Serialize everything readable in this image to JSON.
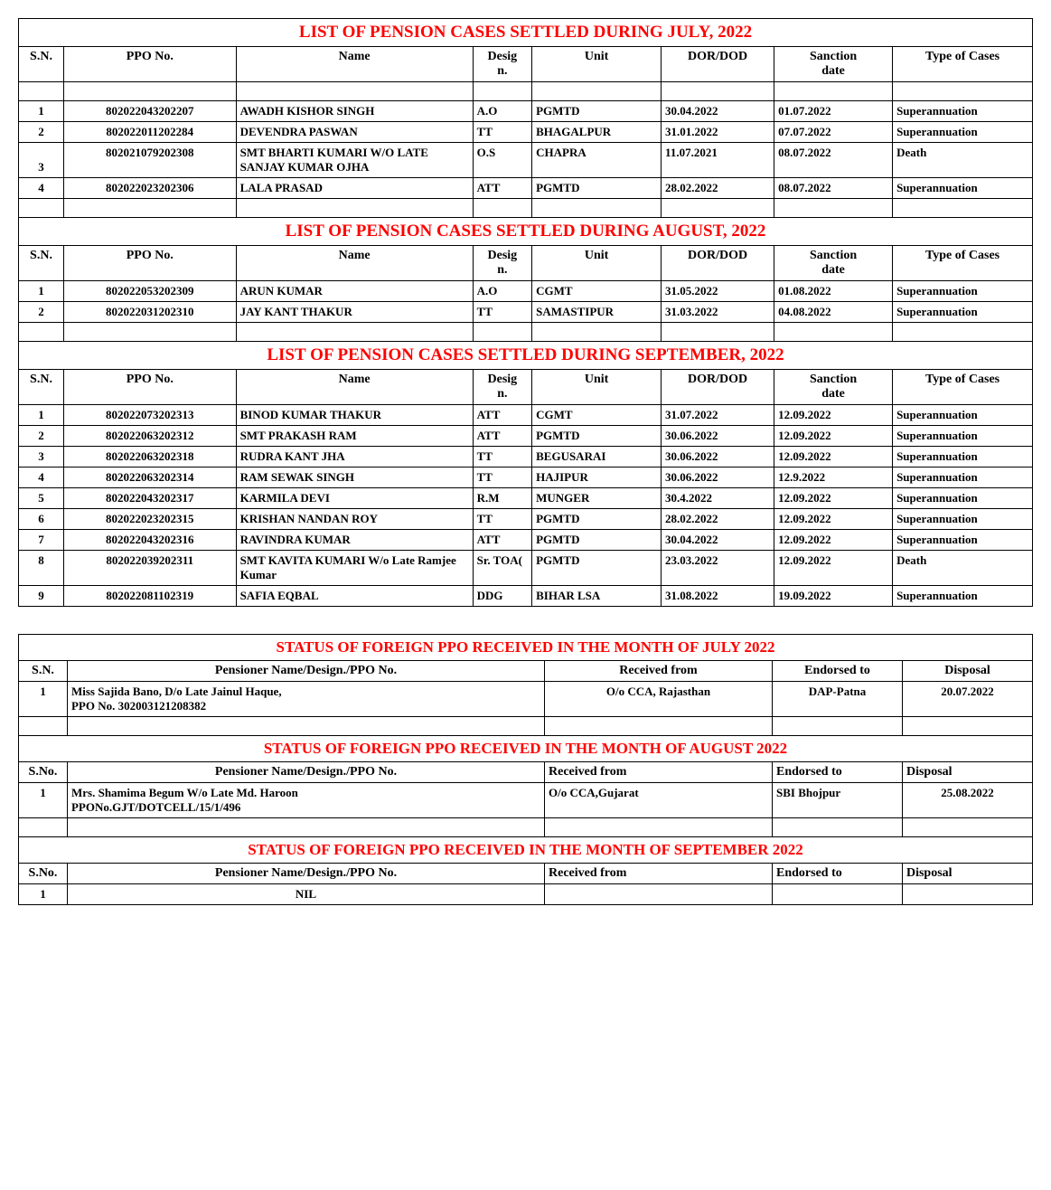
{
  "colors": {
    "title": "#ff0000",
    "text": "#000000",
    "border": "#000000",
    "background": "#ffffff"
  },
  "pension_columns": [
    "S.N.",
    "PPO No.",
    "Name",
    "Desig\nn.",
    "Unit",
    "DOR/DOD",
    "Sanction\ndate",
    "Type of Cases"
  ],
  "sections": [
    {
      "title": "LIST OF PENSION CASES SETTLED DURING JULY, 2022",
      "rows": [
        {
          "sn": "1",
          "ppo": "802022043202207",
          "name": "AWADH KISHOR SINGH",
          "desig": "A.O",
          "unit": "PGMTD",
          "dor": "30.04.2022",
          "san": "01.07.2022",
          "type": "Superannuation"
        },
        {
          "sn": "2",
          "ppo": "802022011202284",
          "name": "DEVENDRA PASWAN",
          "desig": "TT",
          "unit": "BHAGALPUR",
          "dor": "31.01.2022",
          "san": "07.07.2022",
          "type": "Superannuation"
        },
        {
          "sn": "3",
          "ppo": "802021079202308",
          "name": "SMT BHARTI KUMARI W/O LATE SANJAY KUMAR OJHA",
          "desig": "O.S",
          "unit": "CHAPRA",
          "dor": "11.07.2021",
          "san": "08.07.2022",
          "type": "Death"
        },
        {
          "sn": "4",
          "ppo": "802022023202306",
          "name": "LALA PRASAD",
          "desig": "ATT",
          "unit": "PGMTD",
          "dor": "28.02.2022",
          "san": "08.07.2022",
          "type": "Superannuation"
        }
      ]
    },
    {
      "title": "LIST OF PENSION CASES SETTLED DURING AUGUST, 2022",
      "rows": [
        {
          "sn": "1",
          "ppo": "802022053202309",
          "name": "ARUN KUMAR",
          "desig": "A.O",
          "unit": "CGMT",
          "dor": "31.05.2022",
          "san": "01.08.2022",
          "type": "Superannuation"
        },
        {
          "sn": "2",
          "ppo": "802022031202310",
          "name": "JAY KANT THAKUR",
          "desig": "TT",
          "unit": "SAMASTIPUR",
          "dor": "31.03.2022",
          "san": "04.08.2022",
          "type": "Superannuation"
        }
      ]
    },
    {
      "title": "LIST OF PENSION CASES SETTLED DURING SEPTEMBER, 2022",
      "rows": [
        {
          "sn": "1",
          "ppo": "802022073202313",
          "name": "BINOD KUMAR THAKUR",
          "desig": "ATT",
          "unit": "CGMT",
          "dor": "31.07.2022",
          "san": "12.09.2022",
          "type": "Superannuation"
        },
        {
          "sn": "2",
          "ppo": "802022063202312",
          "name": "SMT PRAKASH RAM",
          "desig": "ATT",
          "unit": "PGMTD",
          "dor": "30.06.2022",
          "san": "12.09.2022",
          "type": "Superannuation"
        },
        {
          "sn": "3",
          "ppo": "802022063202318",
          "name": "RUDRA KANT JHA",
          "desig": "TT",
          "unit": "BEGUSARAI",
          "dor": "30.06.2022",
          "san": "12.09.2022",
          "type": "Superannuation"
        },
        {
          "sn": "4",
          "ppo": "802022063202314",
          "name": "RAM SEWAK SINGH",
          "desig": "TT",
          "unit": "HAJIPUR",
          "dor": "30.06.2022",
          "san": "12.9.2022",
          "type": "Superannuation"
        },
        {
          "sn": "5",
          "ppo": "802022043202317",
          "name": "KARMILA DEVI",
          "desig": "R.M",
          "unit": "MUNGER",
          "dor": "30.4.2022",
          "san": "12.09.2022",
          "type": "Superannuation"
        },
        {
          "sn": "6",
          "ppo": "802022023202315",
          "name": "KRISHAN NANDAN ROY",
          "desig": "TT",
          "unit": "PGMTD",
          "dor": "28.02.2022",
          "san": "12.09.2022",
          "type": "Superannuation"
        },
        {
          "sn": "7",
          "ppo": "802022043202316",
          "name": "RAVINDRA KUMAR",
          "desig": "ATT",
          "unit": "PGMTD",
          "dor": "30.04.2022",
          "san": "12.09.2022",
          "type": "Superannuation"
        },
        {
          "sn": "8",
          "ppo": "802022039202311",
          "name": "SMT KAVITA KUMARI W/o Late Ramjee Kumar",
          "desig": "Sr. TOA(",
          "unit": "PGMTD",
          "dor": "23.03.2022",
          "san": "12.09.2022",
          "type": "Death"
        },
        {
          "sn": "9",
          "ppo": "802022081102319",
          "name": "SAFIA EQBAL",
          "desig": "DDG",
          "unit": "BIHAR LSA",
          "dor": "31.08.2022",
          "san": "19.09.2022",
          "type": "Superannuation"
        }
      ]
    }
  ],
  "foreign_columns": [
    "S.N.",
    "Pensioner Name/Design./PPO No.",
    "Received from",
    "Endorsed to",
    "Disposal"
  ],
  "foreign_columns_alt": [
    "S.No.",
    "Pensioner Name/Design./PPO No.",
    "Received from",
    "Endorsed to",
    "Disposal"
  ],
  "foreign_sections": [
    {
      "title": "STATUS OF FOREIGN PPO RECEIVED IN THE MONTH OF JULY  2022",
      "header_style": "center",
      "rows": [
        {
          "sn": "1",
          "name": "Miss Sajida Bano,  D/o Late Jainul Haque,\n                      PPO No. 302003121208382",
          "recv": "O/o CCA, Rajasthan",
          "recv_align": "center",
          "end": "DAP-Patna",
          "end_align": "center",
          "disp": "20.07.2022"
        }
      ]
    },
    {
      "title": "STATUS OF FOREIGN PPO RECEIVED IN THE MONTH OF AUGUST  2022",
      "header_style": "left",
      "rows": [
        {
          "sn": "1",
          "name": "Mrs. Shamima Begum W/o Late Md. Haroon\n                 PPONo.GJT/DOTCELL/15/1/496",
          "recv": "O/o CCA,Gujarat",
          "recv_align": "left",
          "end": "SBI Bhojpur",
          "end_align": "left",
          "disp": "25.08.2022"
        }
      ]
    },
    {
      "title": "STATUS OF FOREIGN PPO RECEIVED IN THE MONTH OF SEPTEMBER  2022",
      "header_style": "left",
      "rows": [
        {
          "sn": "1",
          "name": "NIL",
          "name_align": "center",
          "recv": "",
          "end": "",
          "disp": "",
          "nil": true
        }
      ]
    }
  ]
}
